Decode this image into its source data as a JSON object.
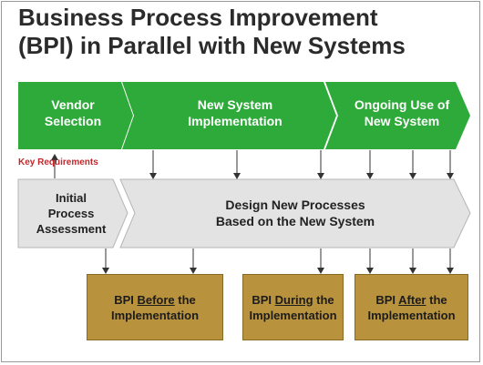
{
  "title": {
    "line1": "Business Process Improvement",
    "line2": "(BPI) in Parallel with New Systems"
  },
  "phases": [
    {
      "line1": "Vendor",
      "line2": "Selection"
    },
    {
      "line1": "New System",
      "line2": "Implementation"
    },
    {
      "line1": "Ongoing Use of",
      "line2": "New System"
    }
  ],
  "key_requirements": "Key Requirements",
  "process_steps": [
    {
      "line1": "Initial",
      "line2": "Process",
      "line3": "Assessment"
    },
    {
      "line1": "Design New Processes",
      "line2": "Based on the New System"
    }
  ],
  "bpi_boxes": [
    {
      "prefix": "BPI ",
      "emphasis": "Before",
      "suffix": " the",
      "line2": "Implementation"
    },
    {
      "prefix": "BPI ",
      "emphasis": "During",
      "suffix": " the",
      "line2": "Implementation"
    },
    {
      "prefix": "BPI ",
      "emphasis": "After",
      "suffix": " the",
      "line2": "Implementation"
    }
  ],
  "colors": {
    "green": "#2eaa3a",
    "gray": "#e3e3e3",
    "gold": "#b8923c",
    "red": "#c0282d"
  }
}
